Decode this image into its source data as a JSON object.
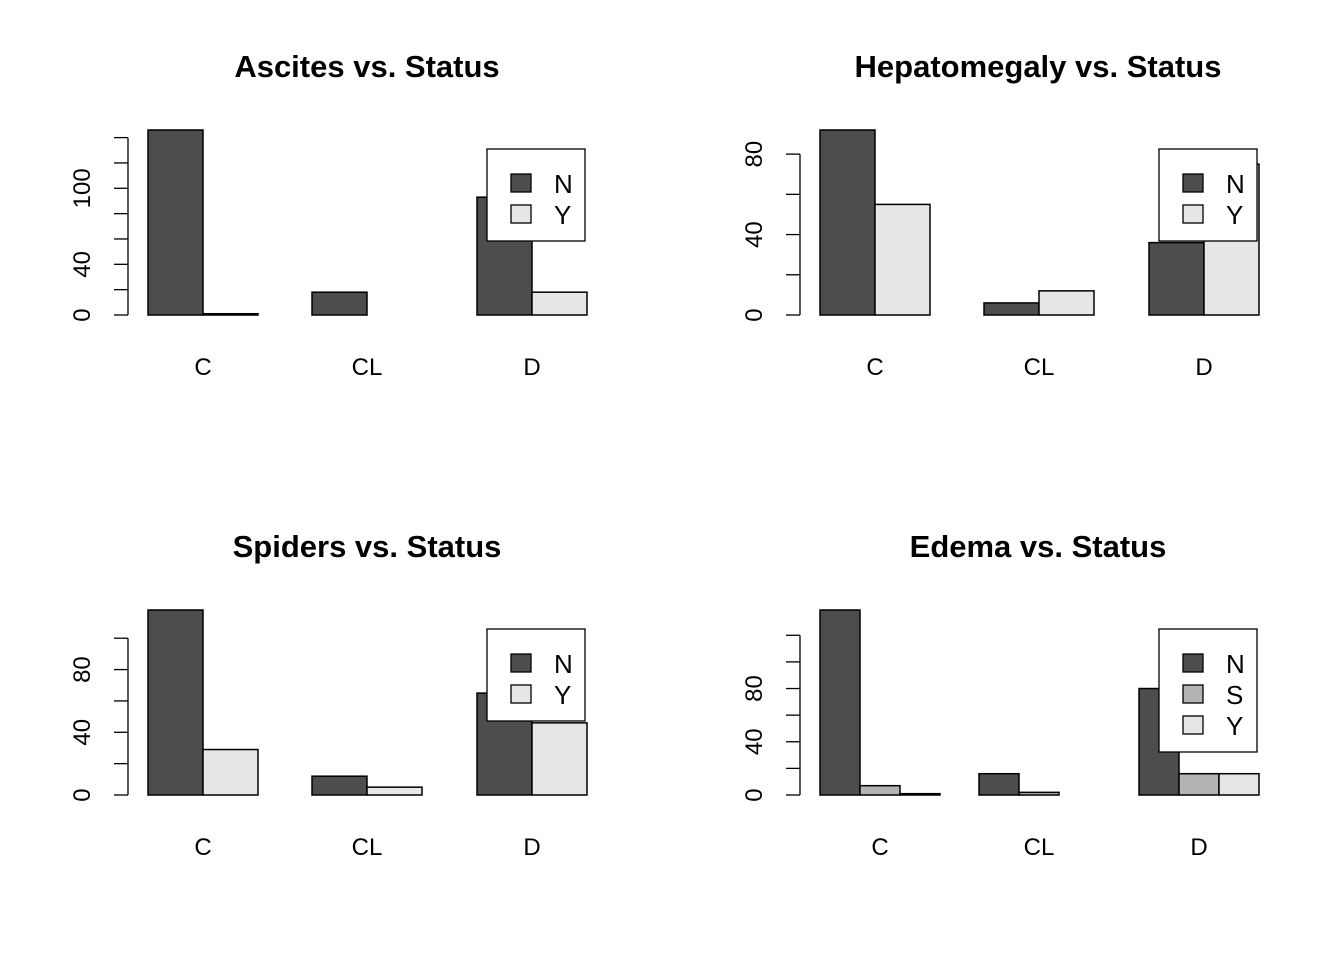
{
  "chart_data": [
    {
      "type": "bar",
      "title": "Ascites vs. Status",
      "categories": [
        "C",
        "CL",
        "D"
      ],
      "series": [
        {
          "name": "N",
          "values": [
            146,
            18,
            93
          ],
          "color": "#4d4d4d"
        },
        {
          "name": "Y",
          "values": [
            1,
            0,
            18
          ],
          "color": "#e6e6e6"
        }
      ],
      "ylim": [
        0,
        146
      ],
      "ticks": [
        0,
        20,
        40,
        60,
        80,
        100,
        120,
        140
      ],
      "tick_labels": [
        "0",
        "",
        "40",
        "",
        "",
        "100",
        "",
        ""
      ],
      "legend": "top-right"
    },
    {
      "type": "bar",
      "title": "Hepatomegaly vs. Status",
      "categories": [
        "C",
        "CL",
        "D"
      ],
      "series": [
        {
          "name": "N",
          "values": [
            92,
            6,
            36
          ],
          "color": "#4d4d4d"
        },
        {
          "name": "Y",
          "values": [
            55,
            12,
            75
          ],
          "color": "#e6e6e6"
        }
      ],
      "ylim": [
        0,
        92
      ],
      "ticks": [
        0,
        20,
        40,
        60,
        80
      ],
      "tick_labels": [
        "0",
        "",
        "40",
        "",
        "80"
      ],
      "legend": "top-right"
    },
    {
      "type": "bar",
      "title": "Spiders vs. Status",
      "categories": [
        "C",
        "CL",
        "D"
      ],
      "series": [
        {
          "name": "N",
          "values": [
            118,
            12,
            65
          ],
          "color": "#4d4d4d"
        },
        {
          "name": "Y",
          "values": [
            29,
            5,
            46
          ],
          "color": "#e6e6e6"
        }
      ],
      "ylim": [
        0,
        118
      ],
      "ticks": [
        0,
        20,
        40,
        60,
        80,
        100
      ],
      "tick_labels": [
        "0",
        "",
        "40",
        "",
        "80",
        ""
      ],
      "legend": "top-right"
    },
    {
      "type": "bar",
      "title": "Edema vs. Status",
      "categories": [
        "C",
        "CL",
        "D"
      ],
      "series": [
        {
          "name": "N",
          "values": [
            139,
            16,
            80
          ],
          "color": "#4d4d4d"
        },
        {
          "name": "S",
          "values": [
            7,
            2,
            16
          ],
          "color": "#b3b3b3"
        },
        {
          "name": "Y",
          "values": [
            1,
            0,
            16
          ],
          "color": "#e6e6e6"
        }
      ],
      "ylim": [
        0,
        139
      ],
      "ticks": [
        0,
        20,
        40,
        60,
        80,
        100,
        120
      ],
      "tick_labels": [
        "0",
        "",
        "40",
        "",
        "80",
        "",
        ""
      ],
      "legend": "top-right"
    }
  ]
}
